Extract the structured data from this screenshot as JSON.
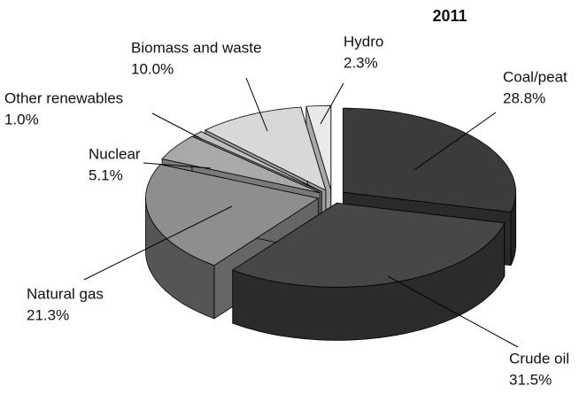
{
  "chart_data": {
    "type": "pie3d",
    "title": "2011",
    "categories": [
      "Coal/peat",
      "Crude oil",
      "Natural gas",
      "Nuclear",
      "Other renewables",
      "Biomass and waste",
      "Hydro"
    ],
    "values": [
      28.8,
      31.5,
      21.3,
      5.1,
      1.0,
      10.0,
      2.3
    ],
    "value_labels": [
      "28.8%",
      "31.5%",
      "21.3%",
      "5.1%",
      "1.0%",
      "10.0%",
      "2.3%"
    ],
    "colors": [
      "#3b3b3b",
      "#474747",
      "#8e8e8e",
      "#a9a9a9",
      "#bfbfbf",
      "#d8d8d8",
      "#e9e9e9"
    ]
  }
}
